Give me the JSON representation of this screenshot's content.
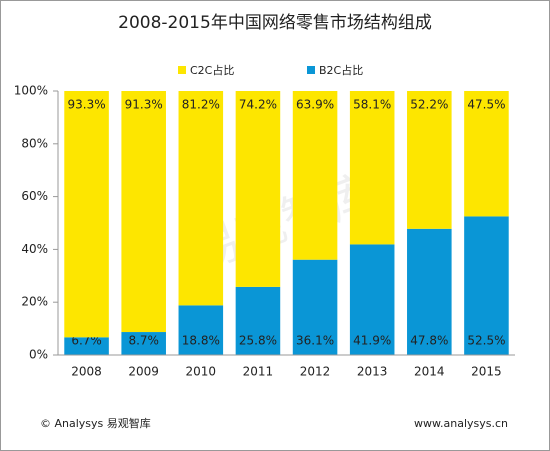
{
  "chart_data": {
    "type": "stacked_bar",
    "title": "2008-2015年中国网络零售市场结构组成",
    "categories": [
      "2008",
      "2009",
      "2010",
      "2011",
      "2012",
      "2013",
      "2014",
      "2015"
    ],
    "series": [
      {
        "name": "B2C占比",
        "color": "#0a96d6",
        "values": [
          6.7,
          8.7,
          18.8,
          25.8,
          36.1,
          41.9,
          47.8,
          52.5
        ],
        "value_labels": [
          "6.7%",
          "8.7%",
          "18.8%",
          "25.8%",
          "36.1%",
          "41.9%",
          "47.8%",
          "52.5%"
        ]
      },
      {
        "name": "C2C占比",
        "color": "#fde600",
        "values": [
          93.3,
          91.3,
          81.2,
          74.2,
          63.9,
          58.1,
          52.2,
          47.5
        ],
        "value_labels": [
          "93.3%",
          "91.3%",
          "81.2%",
          "74.2%",
          "63.9%",
          "58.1%",
          "52.2%",
          "47.5%"
        ]
      }
    ],
    "ylim": [
      0,
      100
    ],
    "yticks": [
      {
        "value": 0,
        "label": "0%"
      },
      {
        "value": 20,
        "label": "20%"
      },
      {
        "value": 40,
        "label": "40%"
      },
      {
        "value": 60,
        "label": "60%"
      },
      {
        "value": 80,
        "label": "80%"
      },
      {
        "value": 100,
        "label": "100%"
      }
    ],
    "grid": false,
    "watermark": "易观智库",
    "source": "© Analysys 易观智库",
    "website": "www.analysys.cn"
  }
}
